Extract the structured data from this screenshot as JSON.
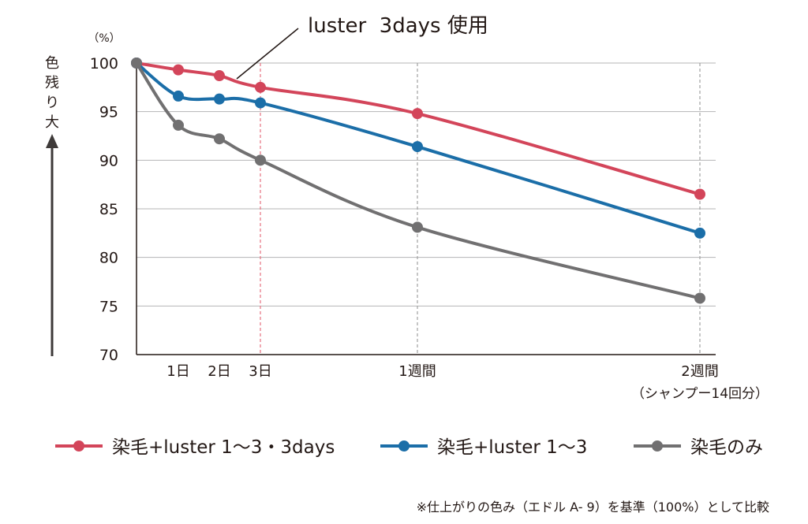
{
  "chart_data": {
    "type": "line",
    "annotation": "luster  3days 使用",
    "unit": "（%）",
    "ylabel": "色残り大",
    "yticks": [
      100,
      95,
      90,
      85,
      80,
      75,
      70
    ],
    "ylim": [
      70,
      100
    ],
    "x_labels": [
      {
        "x": 1,
        "label": "1日"
      },
      {
        "x": 2,
        "label": "2日"
      },
      {
        "x": 3,
        "label": "3日"
      },
      {
        "x": 7,
        "label": "1週間"
      },
      {
        "x": 14,
        "label": "2週間"
      }
    ],
    "x_sublabel": "（シャンプー14回分）",
    "xlim": [
      0,
      14
    ],
    "reference_lines": [
      3,
      7,
      14
    ],
    "series": [
      {
        "name": "染毛+luster 1〜3・3days",
        "color": "#d3455a",
        "x": [
          0,
          1,
          2,
          3,
          7,
          14
        ],
        "y": [
          100,
          99.3,
          98.7,
          97.5,
          94.8,
          86.5
        ]
      },
      {
        "name": "染毛+luster 1〜3",
        "color": "#1b6ea8",
        "x": [
          0,
          1,
          2,
          3,
          7,
          14
        ],
        "y": [
          100,
          96.6,
          96.3,
          95.9,
          91.4,
          82.5
        ]
      },
      {
        "name": "染毛のみ",
        "color": "#717071",
        "x": [
          0,
          1,
          2,
          3,
          7,
          14
        ],
        "y": [
          100,
          93.6,
          92.2,
          90.0,
          83.1,
          75.8
        ]
      }
    ],
    "grid": true,
    "legend_position": "bottom"
  },
  "footnote": "※仕上がりの色み（エドル A- 9）を基準（100%）として比較"
}
